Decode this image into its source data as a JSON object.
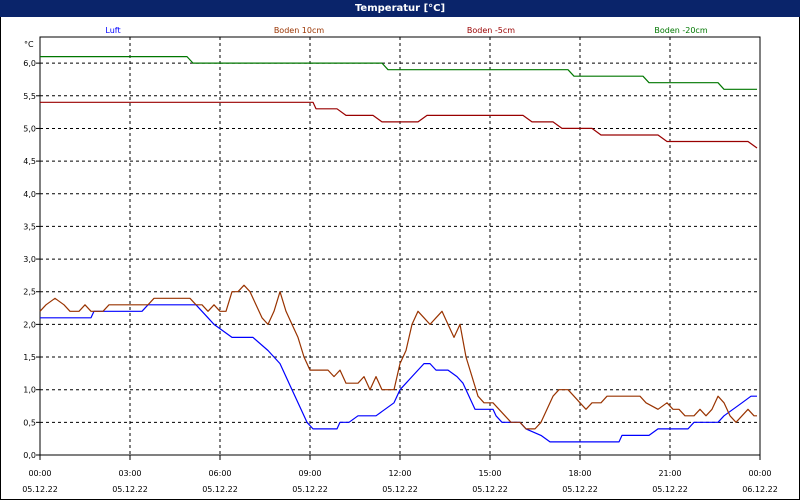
{
  "window": {
    "title": "Temperatur [°C]"
  },
  "chart_data": {
    "type": "line",
    "title": "Temperatur [°C]",
    "ylabel": "°C",
    "ylim": [
      0,
      6.0
    ],
    "yticks": [
      "0,0",
      "0,5",
      "1,0",
      "1,5",
      "2,0",
      "2,5",
      "3,0",
      "3,5",
      "4,0",
      "4,5",
      "5,0",
      "5,5",
      "6,0"
    ],
    "xlim": [
      0,
      24
    ],
    "xticks": [
      {
        "time": "00:00",
        "date": "05.12.22"
      },
      {
        "time": "03:00",
        "date": "05.12.22"
      },
      {
        "time": "06:00",
        "date": "05.12.22"
      },
      {
        "time": "09:00",
        "date": "05.12.22"
      },
      {
        "time": "12:00",
        "date": "05.12.22"
      },
      {
        "time": "15:00",
        "date": "05.12.22"
      },
      {
        "time": "18:00",
        "date": "05.12.22"
      },
      {
        "time": "21:00",
        "date": "05.12.22"
      },
      {
        "time": "00:00",
        "date": "06.12.22"
      }
    ],
    "grid": true,
    "legend_position": "top",
    "series": [
      {
        "name": "Luft",
        "color": "#0000ff",
        "points": [
          [
            0,
            2.1
          ],
          [
            1.7,
            2.1
          ],
          [
            1.8,
            2.2
          ],
          [
            3.4,
            2.2
          ],
          [
            3.6,
            2.3
          ],
          [
            5.2,
            2.3
          ],
          [
            5.4,
            2.2
          ],
          [
            5.6,
            2.1
          ],
          [
            5.8,
            2.0
          ],
          [
            6.1,
            1.9
          ],
          [
            6.4,
            1.8
          ],
          [
            7.1,
            1.8
          ],
          [
            7.6,
            1.6
          ],
          [
            8.0,
            1.4
          ],
          [
            8.3,
            1.1
          ],
          [
            8.6,
            0.8
          ],
          [
            8.9,
            0.5
          ],
          [
            9.1,
            0.4
          ],
          [
            9.9,
            0.4
          ],
          [
            10.0,
            0.5
          ],
          [
            10.3,
            0.5
          ],
          [
            10.6,
            0.6
          ],
          [
            11.2,
            0.6
          ],
          [
            11.5,
            0.7
          ],
          [
            11.8,
            0.8
          ],
          [
            12.0,
            1.0
          ],
          [
            12.2,
            1.1
          ],
          [
            12.4,
            1.2
          ],
          [
            12.6,
            1.3
          ],
          [
            12.8,
            1.4
          ],
          [
            13.0,
            1.4
          ],
          [
            13.2,
            1.3
          ],
          [
            13.6,
            1.3
          ],
          [
            13.9,
            1.2
          ],
          [
            14.1,
            1.1
          ],
          [
            14.3,
            0.9
          ],
          [
            14.5,
            0.7
          ],
          [
            15.1,
            0.7
          ],
          [
            15.2,
            0.6
          ],
          [
            15.4,
            0.5
          ],
          [
            16.0,
            0.5
          ],
          [
            16.2,
            0.4
          ],
          [
            16.7,
            0.3
          ],
          [
            17.0,
            0.2
          ],
          [
            19.3,
            0.2
          ],
          [
            19.4,
            0.3
          ],
          [
            20.3,
            0.3
          ],
          [
            20.6,
            0.4
          ],
          [
            21.6,
            0.4
          ],
          [
            21.8,
            0.5
          ],
          [
            22.6,
            0.5
          ],
          [
            22.8,
            0.6
          ],
          [
            23.1,
            0.7
          ],
          [
            23.4,
            0.8
          ],
          [
            23.7,
            0.9
          ],
          [
            23.9,
            0.9
          ]
        ]
      },
      {
        "name": "Boden 10cm",
        "color": "#993300",
        "points": [
          [
            0,
            2.2
          ],
          [
            0.2,
            2.3
          ],
          [
            0.5,
            2.4
          ],
          [
            0.8,
            2.3
          ],
          [
            1.0,
            2.2
          ],
          [
            1.3,
            2.2
          ],
          [
            1.5,
            2.3
          ],
          [
            1.7,
            2.2
          ],
          [
            2.1,
            2.2
          ],
          [
            2.3,
            2.3
          ],
          [
            3.6,
            2.3
          ],
          [
            3.8,
            2.4
          ],
          [
            5.0,
            2.4
          ],
          [
            5.2,
            2.3
          ],
          [
            5.4,
            2.3
          ],
          [
            5.6,
            2.2
          ],
          [
            5.8,
            2.3
          ],
          [
            6.0,
            2.2
          ],
          [
            6.2,
            2.2
          ],
          [
            6.4,
            2.5
          ],
          [
            6.6,
            2.5
          ],
          [
            6.8,
            2.6
          ],
          [
            7.0,
            2.5
          ],
          [
            7.2,
            2.3
          ],
          [
            7.4,
            2.1
          ],
          [
            7.6,
            2.0
          ],
          [
            7.8,
            2.2
          ],
          [
            8.0,
            2.5
          ],
          [
            8.2,
            2.2
          ],
          [
            8.4,
            2.0
          ],
          [
            8.6,
            1.8
          ],
          [
            8.8,
            1.5
          ],
          [
            9.0,
            1.3
          ],
          [
            9.6,
            1.3
          ],
          [
            9.8,
            1.2
          ],
          [
            10.0,
            1.3
          ],
          [
            10.2,
            1.1
          ],
          [
            10.6,
            1.1
          ],
          [
            10.8,
            1.2
          ],
          [
            11.0,
            1.0
          ],
          [
            11.2,
            1.2
          ],
          [
            11.4,
            1.0
          ],
          [
            11.6,
            1.0
          ],
          [
            11.8,
            1.0
          ],
          [
            12.0,
            1.4
          ],
          [
            12.2,
            1.6
          ],
          [
            12.4,
            2.0
          ],
          [
            12.6,
            2.2
          ],
          [
            12.8,
            2.1
          ],
          [
            13.0,
            2.0
          ],
          [
            13.2,
            2.1
          ],
          [
            13.4,
            2.2
          ],
          [
            13.6,
            2.0
          ],
          [
            13.8,
            1.8
          ],
          [
            14.0,
            2.0
          ],
          [
            14.2,
            1.5
          ],
          [
            14.4,
            1.2
          ],
          [
            14.6,
            0.9
          ],
          [
            14.8,
            0.8
          ],
          [
            15.1,
            0.8
          ],
          [
            15.3,
            0.7
          ],
          [
            15.5,
            0.6
          ],
          [
            15.7,
            0.5
          ],
          [
            16.0,
            0.5
          ],
          [
            16.2,
            0.4
          ],
          [
            16.5,
            0.4
          ],
          [
            16.7,
            0.5
          ],
          [
            16.9,
            0.7
          ],
          [
            17.1,
            0.9
          ],
          [
            17.3,
            1.0
          ],
          [
            17.6,
            1.0
          ],
          [
            17.8,
            0.9
          ],
          [
            18.0,
            0.8
          ],
          [
            18.2,
            0.7
          ],
          [
            18.4,
            0.8
          ],
          [
            18.7,
            0.8
          ],
          [
            18.9,
            0.9
          ],
          [
            20.0,
            0.9
          ],
          [
            20.2,
            0.8
          ],
          [
            20.6,
            0.7
          ],
          [
            20.9,
            0.8
          ],
          [
            21.1,
            0.7
          ],
          [
            21.3,
            0.7
          ],
          [
            21.5,
            0.6
          ],
          [
            21.8,
            0.6
          ],
          [
            22.0,
            0.7
          ],
          [
            22.2,
            0.6
          ],
          [
            22.4,
            0.7
          ],
          [
            22.6,
            0.9
          ],
          [
            22.8,
            0.8
          ],
          [
            23.0,
            0.6
          ],
          [
            23.2,
            0.5
          ],
          [
            23.4,
            0.6
          ],
          [
            23.6,
            0.7
          ],
          [
            23.8,
            0.6
          ],
          [
            23.9,
            0.6
          ]
        ]
      },
      {
        "name": "Boden -5cm",
        "color": "#990000",
        "points": [
          [
            0,
            5.4
          ],
          [
            9.1,
            5.4
          ],
          [
            9.2,
            5.3
          ],
          [
            9.9,
            5.3
          ],
          [
            10.2,
            5.2
          ],
          [
            11.1,
            5.2
          ],
          [
            11.4,
            5.1
          ],
          [
            12.6,
            5.1
          ],
          [
            12.9,
            5.2
          ],
          [
            16.1,
            5.2
          ],
          [
            16.4,
            5.1
          ],
          [
            17.1,
            5.1
          ],
          [
            17.4,
            5.0
          ],
          [
            18.4,
            5.0
          ],
          [
            18.7,
            4.9
          ],
          [
            20.6,
            4.9
          ],
          [
            20.9,
            4.8
          ],
          [
            23.6,
            4.8
          ],
          [
            23.9,
            4.7
          ]
        ]
      },
      {
        "name": "Boden -20cm",
        "color": "#007700",
        "points": [
          [
            0,
            6.1
          ],
          [
            4.9,
            6.1
          ],
          [
            5.1,
            6.0
          ],
          [
            11.4,
            6.0
          ],
          [
            11.6,
            5.9
          ],
          [
            17.6,
            5.9
          ],
          [
            17.8,
            5.8
          ],
          [
            20.1,
            5.8
          ],
          [
            20.3,
            5.7
          ],
          [
            22.6,
            5.7
          ],
          [
            22.8,
            5.6
          ],
          [
            23.9,
            5.6
          ]
        ]
      }
    ]
  }
}
